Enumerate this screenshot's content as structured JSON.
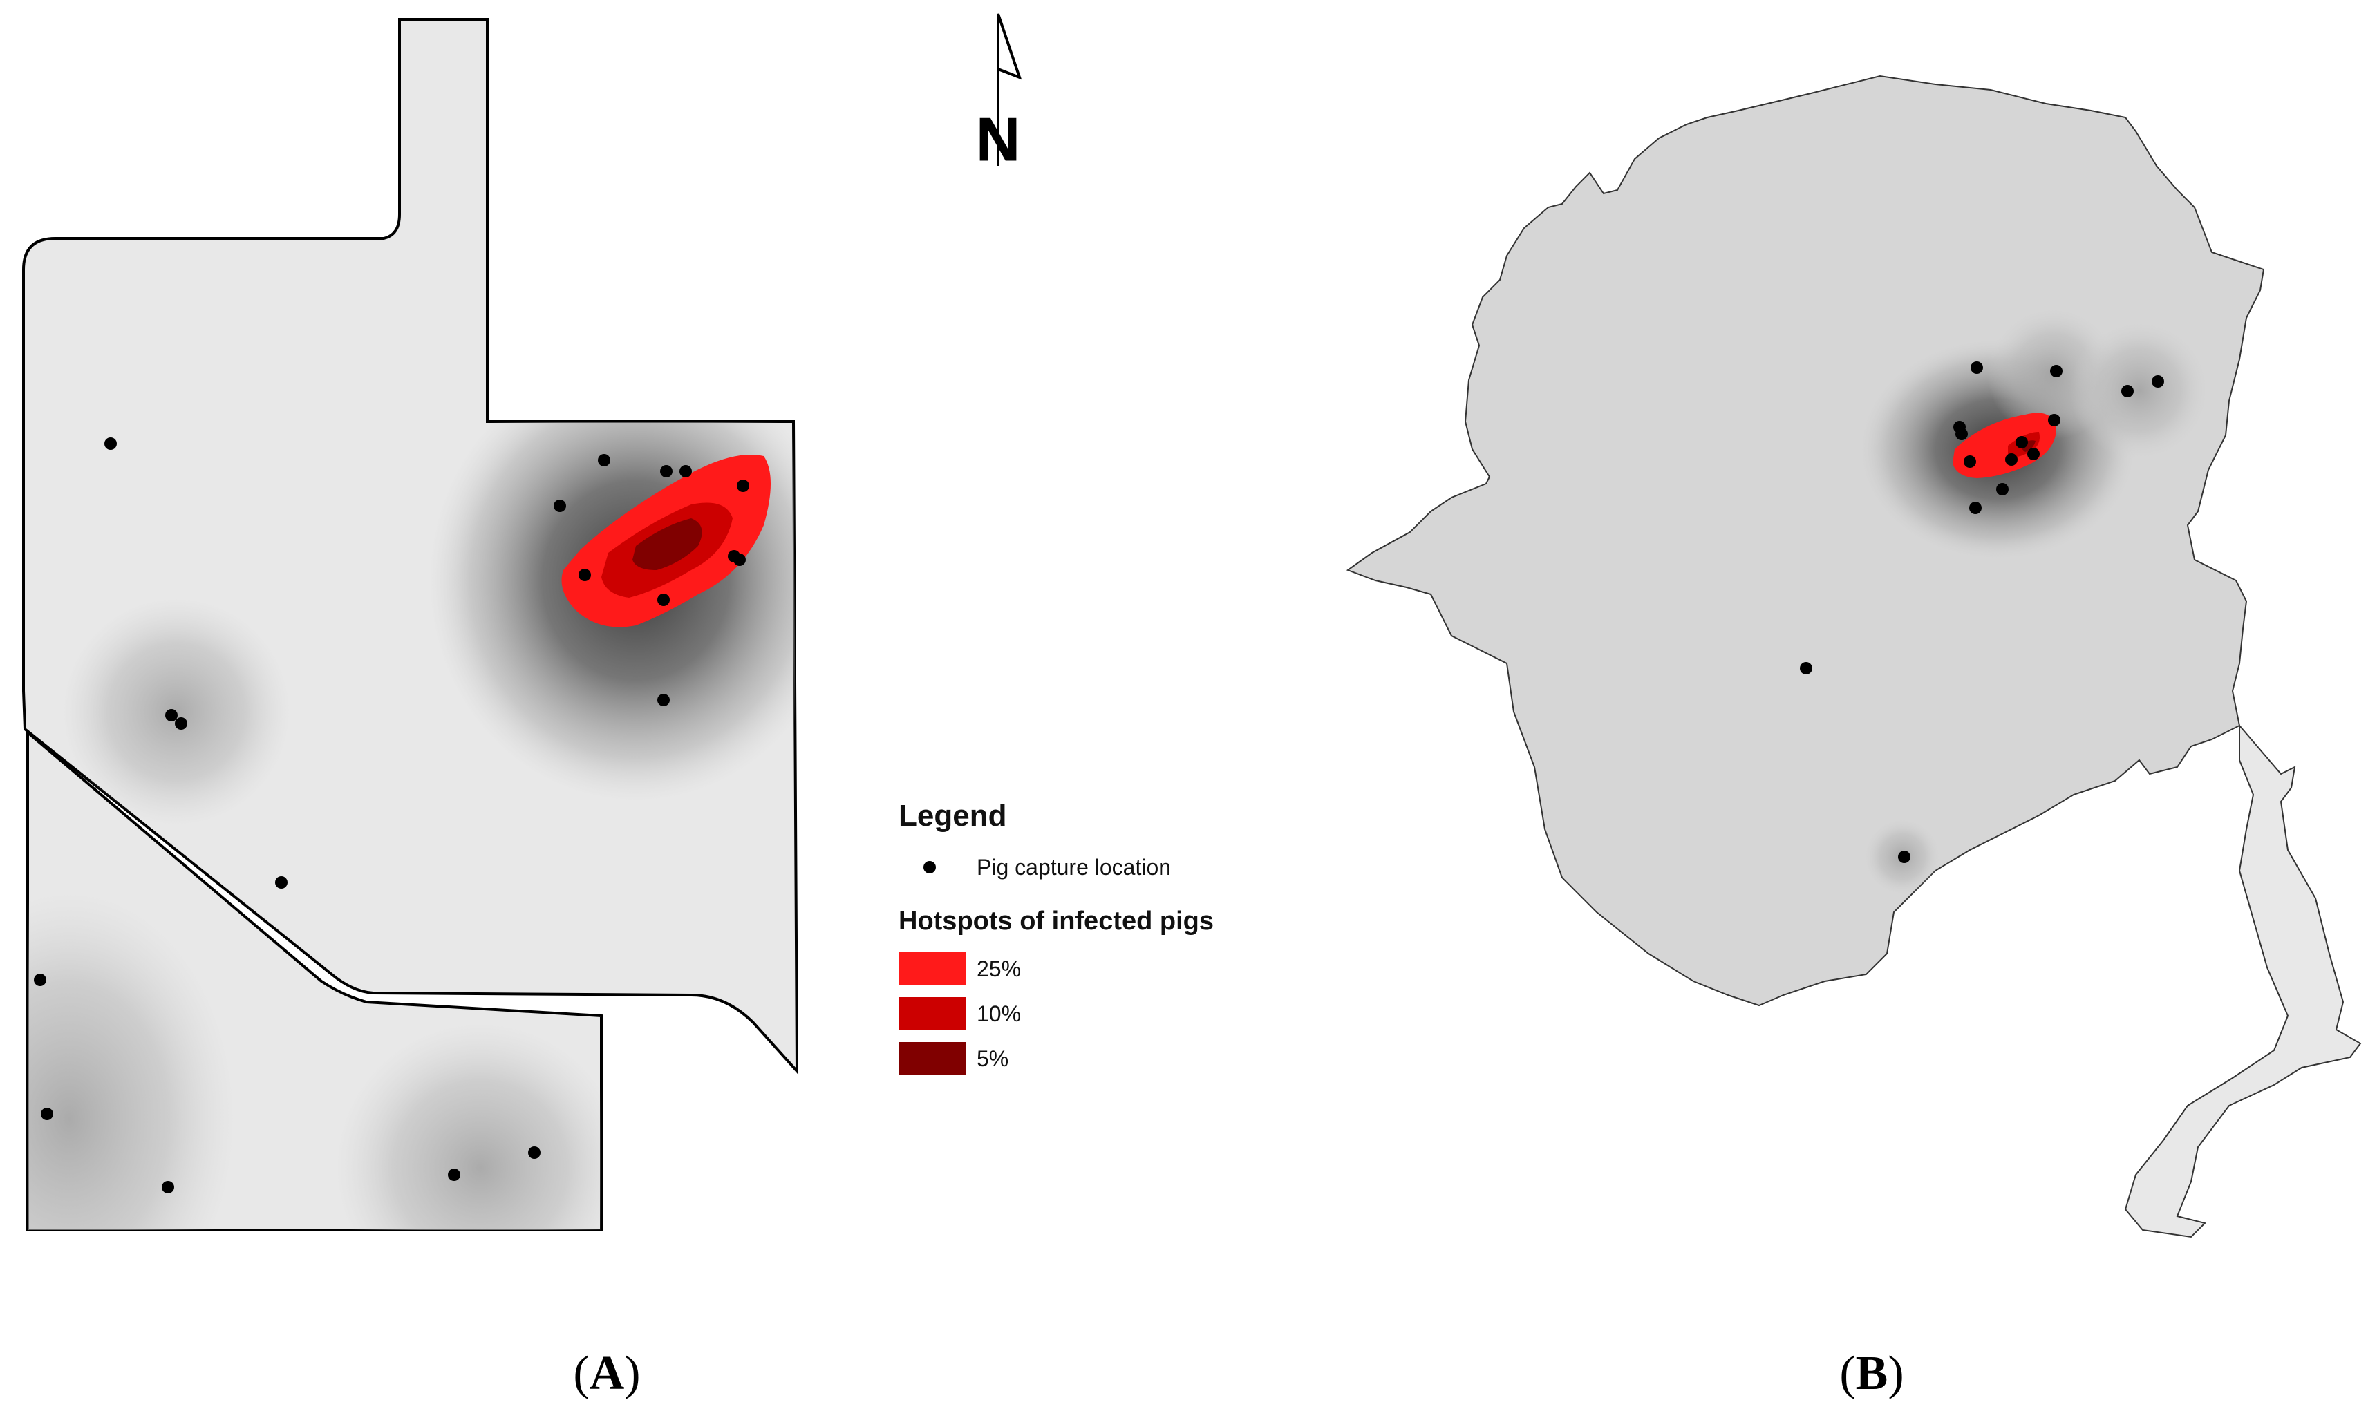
{
  "panels": [
    {
      "label": "A",
      "open": "(",
      "close": ")"
    },
    {
      "label": "B",
      "open": "(",
      "close": ")"
    }
  ],
  "north_arrow": {
    "label": "N"
  },
  "legend": {
    "title": "Legend",
    "point_label": "Pig capture location",
    "hotspot_title": "Hotspots of infected pigs",
    "classes": [
      {
        "label": "25%",
        "color": "#ff1a1a"
      },
      {
        "label": "10%",
        "color": "#cc0000"
      },
      {
        "label": "5%",
        "color": "#800000"
      }
    ]
  },
  "colors": {
    "land": "#e8e8e8",
    "land_b": "#d6d6d6",
    "outline": "#000000",
    "point": "#000000"
  }
}
